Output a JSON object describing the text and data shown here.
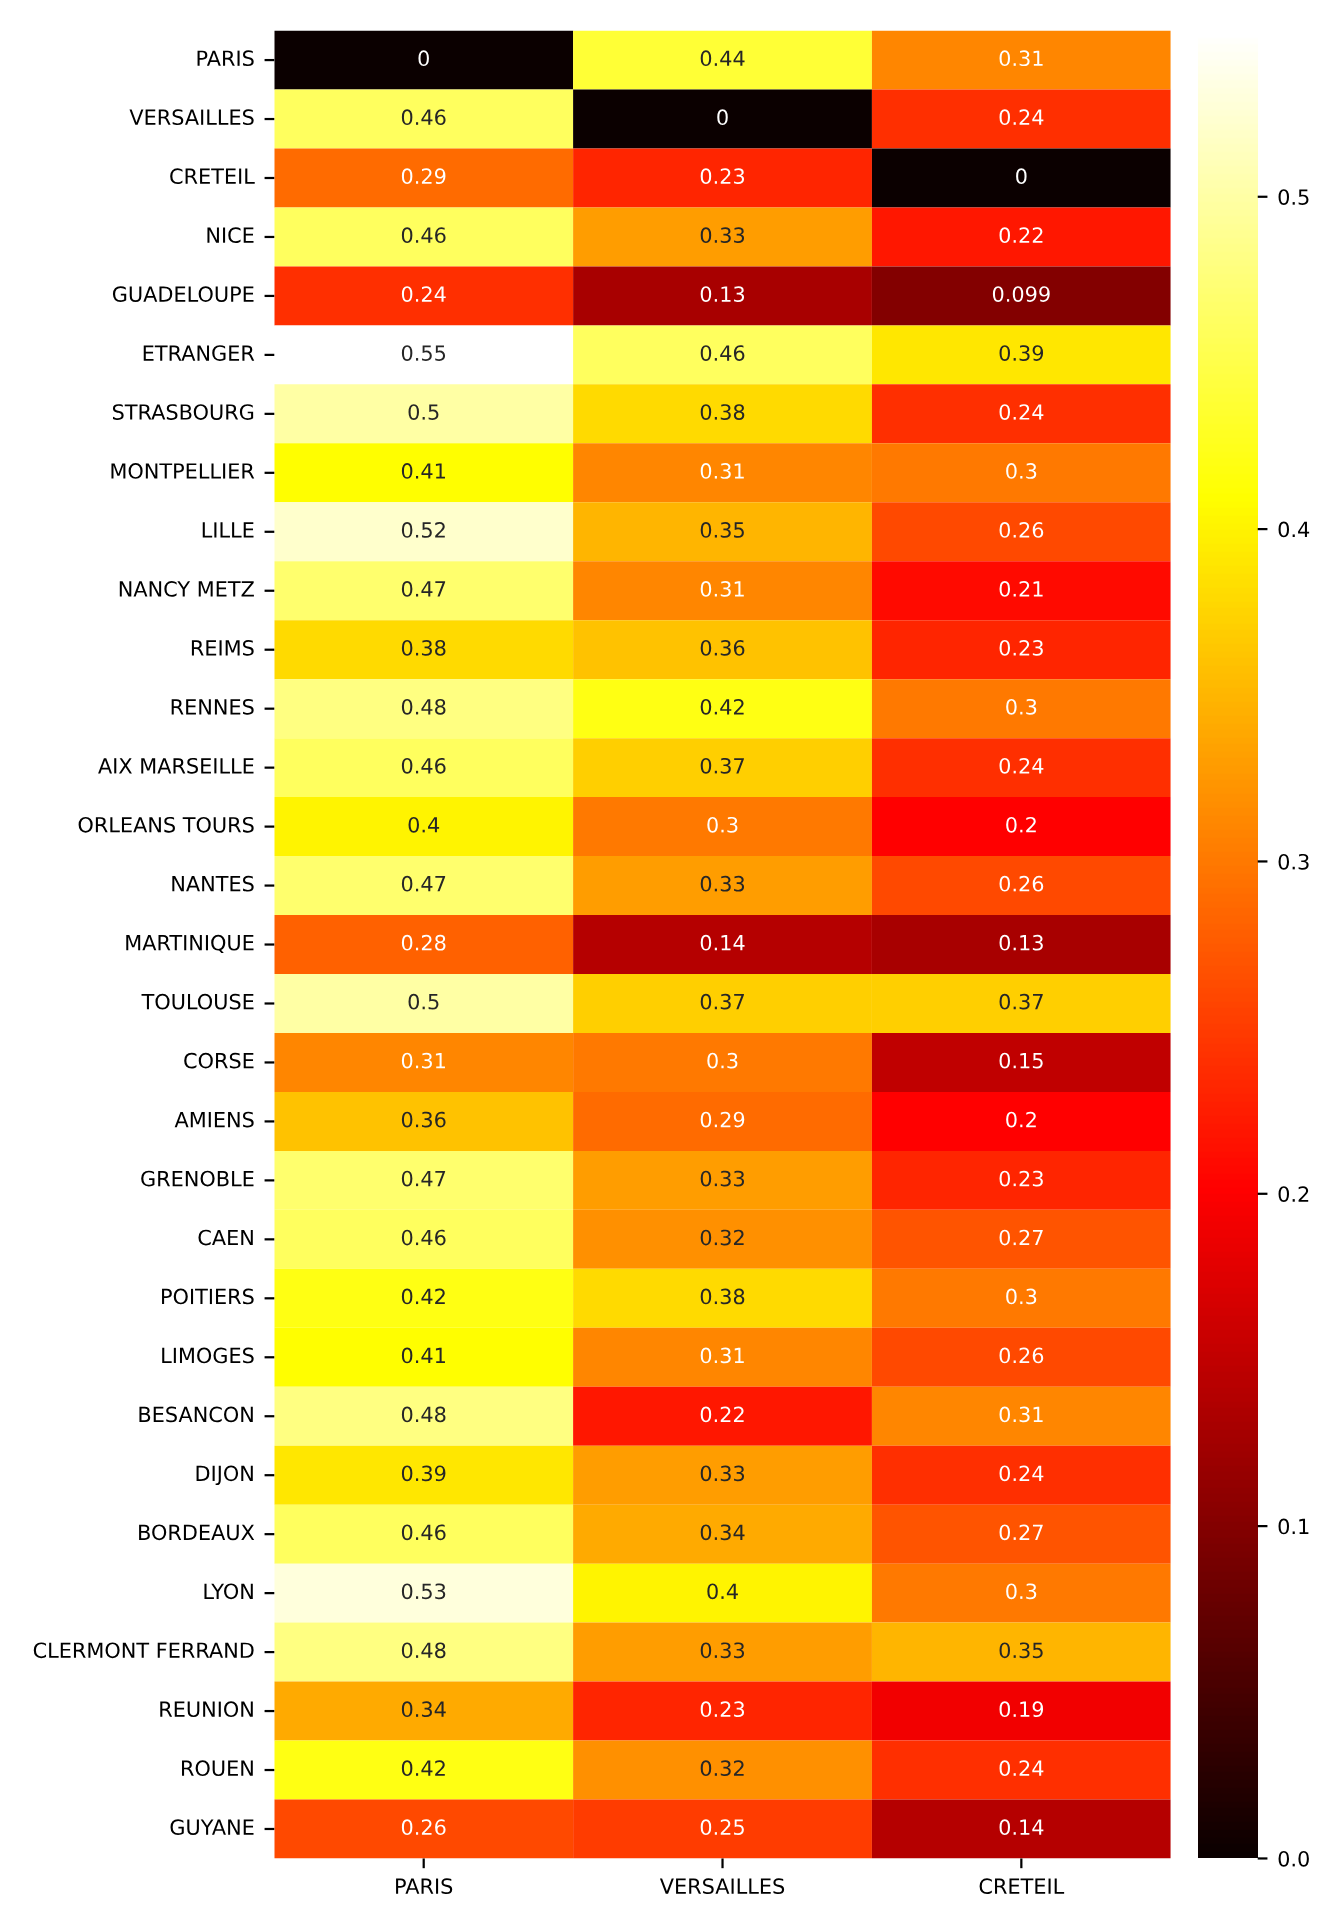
{
  "chart_data": {
    "type": "heatmap",
    "categories": [
      "PARIS",
      "VERSAILLES",
      "CRETEIL"
    ],
    "y_categories": [
      "PARIS",
      "VERSAILLES",
      "CRETEIL",
      "NICE",
      "GUADELOUPE",
      "ETRANGER",
      "STRASBOURG",
      "MONTPELLIER",
      "LILLE",
      "NANCY METZ",
      "REIMS",
      "RENNES",
      "AIX MARSEILLE",
      "ORLEANS TOURS",
      "NANTES",
      "MARTINIQUE",
      "TOULOUSE",
      "CORSE",
      "AMIENS",
      "GRENOBLE",
      "CAEN",
      "POITIERS",
      "LIMOGES",
      "BESANCON",
      "DIJON",
      "BORDEAUX",
      "LYON",
      "CLERMONT FERRAND",
      "REUNION",
      "ROUEN",
      "GUYANE"
    ],
    "cells": [
      [
        0,
        0.44,
        0.31
      ],
      [
        0.46,
        0,
        0.24
      ],
      [
        0.29,
        0.23,
        0
      ],
      [
        0.46,
        0.33,
        0.22
      ],
      [
        0.24,
        0.13,
        0.099
      ],
      [
        0.55,
        0.46,
        0.39
      ],
      [
        0.5,
        0.38,
        0.24
      ],
      [
        0.41,
        0.31,
        0.3
      ],
      [
        0.52,
        0.35,
        0.26
      ],
      [
        0.47,
        0.31,
        0.21
      ],
      [
        0.38,
        0.36,
        0.23
      ],
      [
        0.48,
        0.42,
        0.3
      ],
      [
        0.46,
        0.37,
        0.24
      ],
      [
        0.4,
        0.3,
        0.2
      ],
      [
        0.47,
        0.33,
        0.26
      ],
      [
        0.28,
        0.14,
        0.13
      ],
      [
        0.5,
        0.37,
        0.37
      ],
      [
        0.31,
        0.3,
        0.15
      ],
      [
        0.36,
        0.29,
        0.2
      ],
      [
        0.47,
        0.33,
        0.23
      ],
      [
        0.46,
        0.32,
        0.27
      ],
      [
        0.42,
        0.38,
        0.3
      ],
      [
        0.41,
        0.31,
        0.26
      ],
      [
        0.48,
        0.22,
        0.31
      ],
      [
        0.39,
        0.33,
        0.24
      ],
      [
        0.46,
        0.34,
        0.27
      ],
      [
        0.53,
        0.4,
        0.3
      ],
      [
        0.48,
        0.33,
        0.35
      ],
      [
        0.34,
        0.23,
        0.19
      ],
      [
        0.42,
        0.32,
        0.24
      ],
      [
        0.26,
        0.25,
        0.14
      ]
    ],
    "clim": [
      0,
      0.55
    ],
    "cticks": [
      {
        "value": 0,
        "label": "0.0"
      },
      {
        "value": 0.1,
        "label": "0.1"
      },
      {
        "value": 0.2,
        "label": "0.2"
      },
      {
        "value": 0.3,
        "label": "0.3"
      },
      {
        "value": 0.4,
        "label": "0.4"
      },
      {
        "value": 0.5,
        "label": "0.5"
      }
    ],
    "data_labels": true
  }
}
